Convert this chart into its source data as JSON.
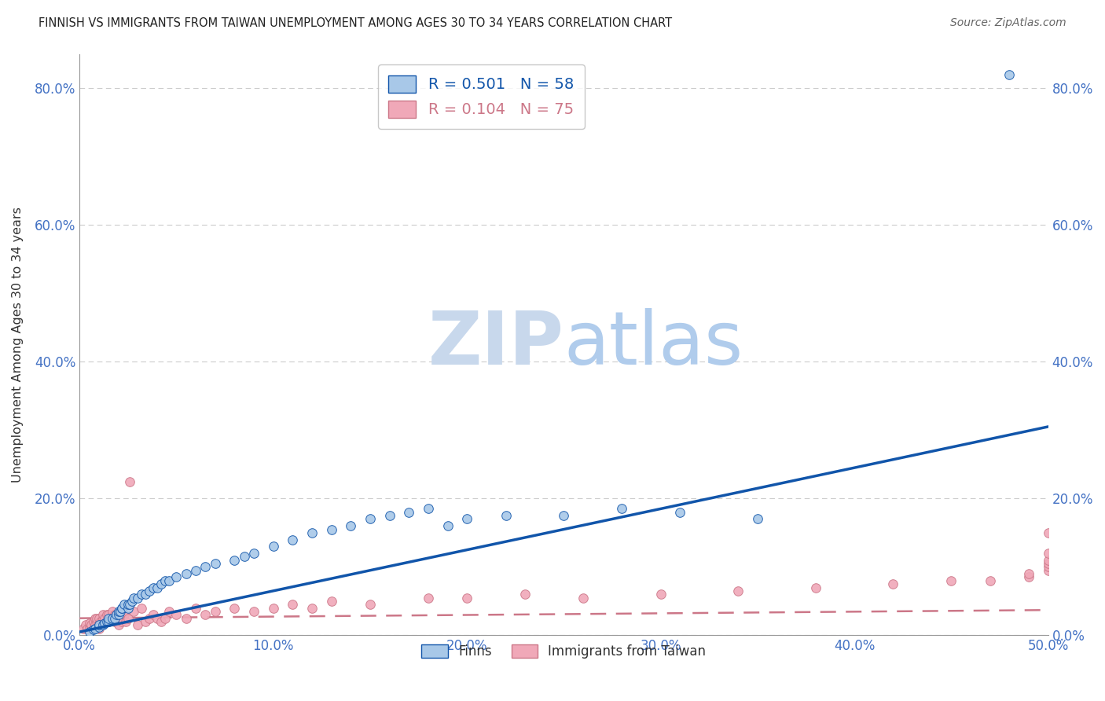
{
  "title": "FINNISH VS IMMIGRANTS FROM TAIWAN UNEMPLOYMENT AMONG AGES 30 TO 34 YEARS CORRELATION CHART",
  "source": "Source: ZipAtlas.com",
  "ylabel": "Unemployment Among Ages 30 to 34 years",
  "legend_label1": "Finns",
  "legend_label2": "Immigrants from Taiwan",
  "r1": 0.501,
  "n1": 58,
  "r2": 0.104,
  "n2": 75,
  "xlim": [
    0.0,
    0.5
  ],
  "ylim": [
    0.0,
    0.85
  ],
  "xticks": [
    0.0,
    0.1,
    0.2,
    0.3,
    0.4,
    0.5
  ],
  "yticks": [
    0.0,
    0.2,
    0.4,
    0.6,
    0.8
  ],
  "color_finns": "#a8c8e8",
  "color_taiwan": "#f0a8b8",
  "color_line_finns": "#1155aa",
  "color_line_taiwan": "#cc7788",
  "background_color": "#ffffff",
  "watermark_text": "ZIPatlas",
  "watermark_color": "#dce8f5",
  "line1_slope": 0.6,
  "line1_intercept": 0.005,
  "line2_slope": 0.024,
  "line2_intercept": 0.025,
  "finns_x": [
    0.005,
    0.007,
    0.008,
    0.01,
    0.01,
    0.012,
    0.013,
    0.014,
    0.015,
    0.015,
    0.017,
    0.018,
    0.019,
    0.02,
    0.02,
    0.021,
    0.022,
    0.022,
    0.023,
    0.025,
    0.025,
    0.026,
    0.027,
    0.028,
    0.03,
    0.032,
    0.034,
    0.036,
    0.038,
    0.04,
    0.042,
    0.044,
    0.046,
    0.05,
    0.055,
    0.06,
    0.065,
    0.07,
    0.08,
    0.085,
    0.09,
    0.1,
    0.11,
    0.12,
    0.13,
    0.14,
    0.15,
    0.16,
    0.17,
    0.18,
    0.19,
    0.2,
    0.22,
    0.25,
    0.28,
    0.31,
    0.35,
    0.48
  ],
  "finns_y": [
    0.005,
    0.008,
    0.01,
    0.012,
    0.015,
    0.015,
    0.018,
    0.02,
    0.02,
    0.025,
    0.025,
    0.025,
    0.03,
    0.03,
    0.035,
    0.035,
    0.04,
    0.04,
    0.045,
    0.04,
    0.045,
    0.045,
    0.05,
    0.055,
    0.055,
    0.06,
    0.06,
    0.065,
    0.07,
    0.07,
    0.075,
    0.08,
    0.08,
    0.085,
    0.09,
    0.095,
    0.1,
    0.105,
    0.11,
    0.115,
    0.12,
    0.13,
    0.14,
    0.15,
    0.155,
    0.16,
    0.17,
    0.175,
    0.18,
    0.185,
    0.16,
    0.17,
    0.175,
    0.175,
    0.185,
    0.18,
    0.17,
    0.82
  ],
  "taiwan_x": [
    0.002,
    0.003,
    0.004,
    0.005,
    0.005,
    0.006,
    0.007,
    0.007,
    0.008,
    0.008,
    0.009,
    0.009,
    0.01,
    0.01,
    0.01,
    0.011,
    0.012,
    0.012,
    0.013,
    0.014,
    0.015,
    0.015,
    0.016,
    0.017,
    0.018,
    0.018,
    0.019,
    0.02,
    0.02,
    0.021,
    0.022,
    0.023,
    0.024,
    0.025,
    0.026,
    0.028,
    0.03,
    0.032,
    0.034,
    0.036,
    0.038,
    0.04,
    0.042,
    0.044,
    0.046,
    0.05,
    0.055,
    0.06,
    0.065,
    0.07,
    0.08,
    0.09,
    0.1,
    0.11,
    0.12,
    0.13,
    0.15,
    0.18,
    0.2,
    0.23,
    0.26,
    0.3,
    0.34,
    0.38,
    0.42,
    0.45,
    0.47,
    0.49,
    0.49,
    0.5,
    0.5,
    0.5,
    0.5,
    0.5,
    0.5
  ],
  "taiwan_y": [
    0.01,
    0.015,
    0.01,
    0.012,
    0.018,
    0.015,
    0.01,
    0.02,
    0.015,
    0.025,
    0.02,
    0.025,
    0.01,
    0.015,
    0.025,
    0.02,
    0.025,
    0.03,
    0.025,
    0.03,
    0.02,
    0.03,
    0.025,
    0.035,
    0.02,
    0.03,
    0.025,
    0.015,
    0.03,
    0.025,
    0.02,
    0.03,
    0.02,
    0.025,
    0.225,
    0.035,
    0.015,
    0.04,
    0.02,
    0.025,
    0.03,
    0.025,
    0.02,
    0.025,
    0.035,
    0.03,
    0.025,
    0.04,
    0.03,
    0.035,
    0.04,
    0.035,
    0.04,
    0.045,
    0.04,
    0.05,
    0.045,
    0.055,
    0.055,
    0.06,
    0.055,
    0.06,
    0.065,
    0.07,
    0.075,
    0.08,
    0.08,
    0.085,
    0.09,
    0.095,
    0.1,
    0.105,
    0.11,
    0.12,
    0.15
  ]
}
